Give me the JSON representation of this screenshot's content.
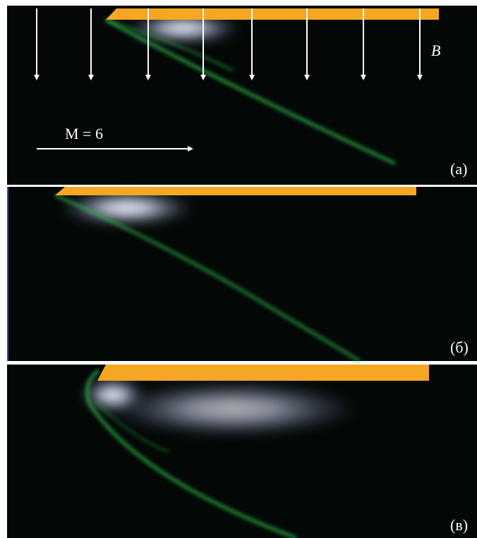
{
  "panels": [
    {
      "label": "(а)",
      "field_label": "B",
      "flow_label": "M = 6"
    },
    {
      "label": "(б)"
    },
    {
      "label": "(в)"
    }
  ]
}
